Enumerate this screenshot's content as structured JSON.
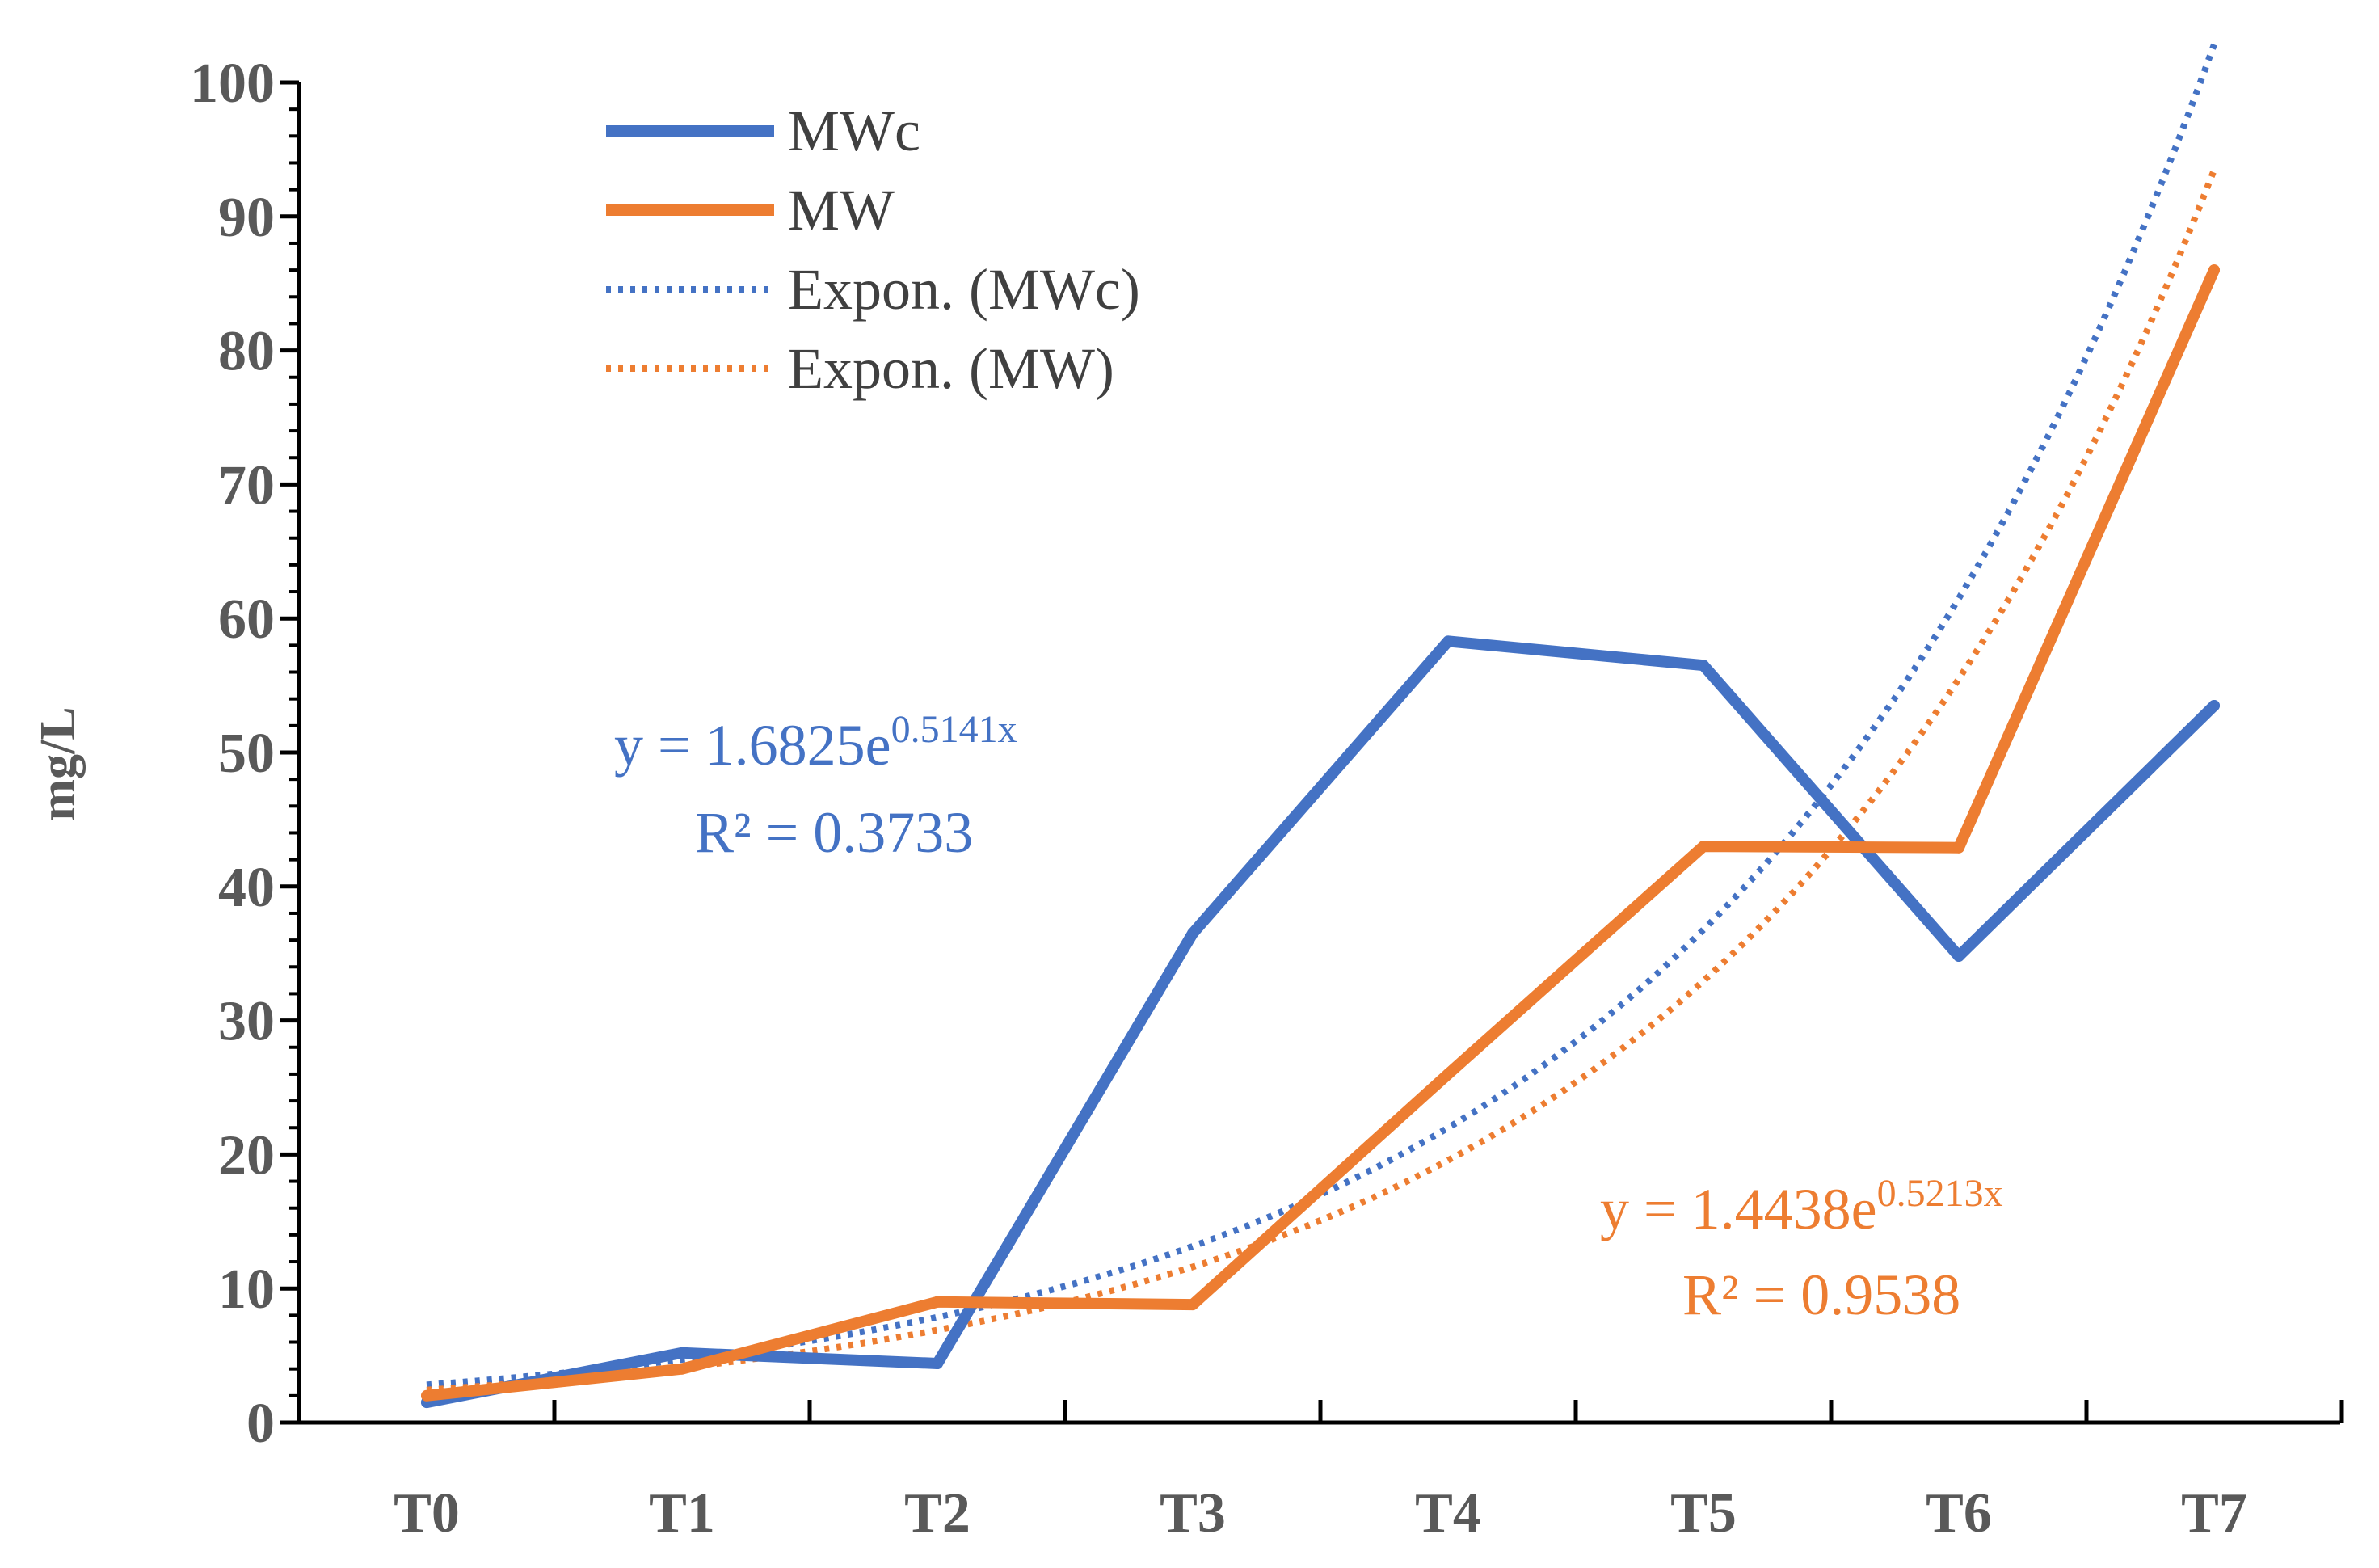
{
  "chart_data": {
    "type": "line",
    "title": "",
    "xlabel": "",
    "ylabel": "mg/L",
    "categories": [
      "T0",
      "T1",
      "T2",
      "T3",
      "T4",
      "T5",
      "T6",
      "T7"
    ],
    "ylim": [
      0,
      100
    ],
    "ytick_labels": [
      "0",
      "10",
      "20",
      "30",
      "40",
      "50",
      "60",
      "70",
      "80",
      "90",
      "100"
    ],
    "grid": false,
    "legend_position": "top-left",
    "series": [
      {
        "name": "MWc",
        "color": "#4472C4",
        "style": "solid",
        "values": [
          1.5,
          5.2,
          4.4,
          36.5,
          58.3,
          56.5,
          34.8,
          53.5
        ]
      },
      {
        "name": "MW",
        "color": "#ED7D31",
        "style": "solid",
        "values": [
          2.0,
          4.0,
          9.0,
          8.8,
          26.0,
          43.0,
          42.9,
          86.0
        ]
      }
    ],
    "trendlines": [
      {
        "name": "Expon. (MWc)",
        "of": "MWc",
        "type": "exponential",
        "color": "#4472C4",
        "style": "dotted",
        "a": 1.6825,
        "b": 0.5141,
        "equation_prefix": "y = 1.6825e",
        "equation_exponent": "0.5141x",
        "r2_label": "R² = 0.3733"
      },
      {
        "name": "Expon. (MW)",
        "of": "MW",
        "type": "exponential",
        "color": "#ED7D31",
        "style": "dotted",
        "a": 1.4438,
        "b": 0.5213,
        "equation_prefix": "y = 1.4438e",
        "equation_exponent": "0.5213x",
        "r2_label": "R² = 0.9538"
      }
    ],
    "legend": [
      "MWc",
      "MW",
      "Expon. (MWc)",
      "Expon. (MW)"
    ]
  }
}
